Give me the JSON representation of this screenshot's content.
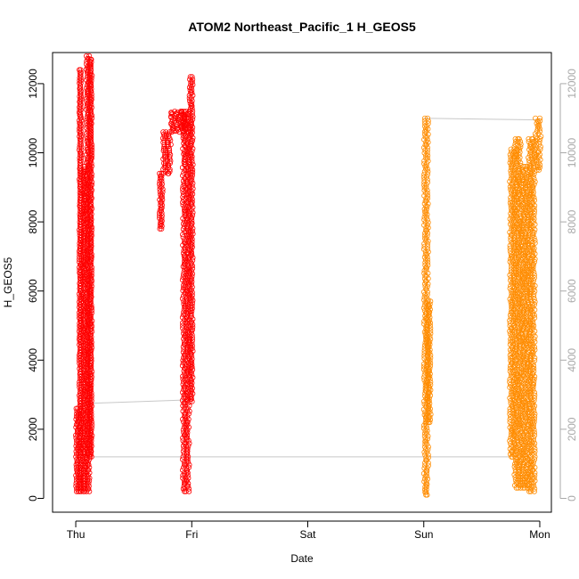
{
  "chart_data": {
    "type": "scatter",
    "title": "ATOM2 Northeast_Pacific_1 H_GEOS5",
    "xlabel": "Date",
    "ylabel": "H_GEOS5",
    "x_ticks": [
      "Thu",
      "Fri",
      "Sat",
      "Sun",
      "Mon"
    ],
    "xlim_days": [
      -0.2,
      4.1
    ],
    "ylim": [
      -400,
      12900
    ],
    "y_ticks_left": [
      "0",
      "2000",
      "4000",
      "6000",
      "8000",
      "10000",
      "12000"
    ],
    "y_ticks_right": [
      "0",
      "2000",
      "4000",
      "6000",
      "8000",
      "10000",
      "12000"
    ],
    "grid": false,
    "legend": "none",
    "colors": {
      "series_1": "#ff0000",
      "series_2": "#ff8c00",
      "connector": "#c8c8c8",
      "right_axis": "#a9a9a9"
    },
    "series": [
      {
        "color": "#ff0000",
        "segments": [
          {
            "x_range": [
              0.0,
              0.03
            ],
            "y_range": [
              200,
              2600
            ]
          },
          {
            "x_range": [
              0.03,
              0.05
            ],
            "y_range": [
              200,
              12400
            ]
          },
          {
            "x_range": [
              0.06,
              0.09
            ],
            "y_range": [
              200,
              9600
            ]
          },
          {
            "x_range": [
              0.09,
              0.12
            ],
            "y_range": [
              200,
              12800
            ]
          },
          {
            "x_range": [
              0.12,
              0.14
            ],
            "y_range": [
              1200,
              12700
            ]
          },
          {
            "x_range": [
              0.72,
              0.75
            ],
            "y_range": [
              7800,
              9400
            ]
          },
          {
            "x_range": [
              0.75,
              0.82
            ],
            "y_range": [
              9400,
              10600
            ]
          },
          {
            "x_range": [
              0.82,
              0.95
            ],
            "y_range": [
              10600,
              11200
            ]
          },
          {
            "x_range": [
              0.92,
              0.98
            ],
            "y_range": [
              200,
              11200
            ]
          },
          {
            "x_range": [
              0.98,
              1.01
            ],
            "y_range": [
              2800,
              12200
            ]
          }
        ]
      },
      {
        "color": "#ff8c00",
        "segments": [
          {
            "x_range": [
              3.0,
              3.04
            ],
            "y_range": [
              100,
              11000
            ]
          },
          {
            "x_range": [
              3.03,
              3.06
            ],
            "y_range": [
              2200,
              5700
            ]
          },
          {
            "x_range": [
              3.74,
              3.78
            ],
            "y_range": [
              1200,
              10100
            ]
          },
          {
            "x_range": [
              3.78,
              3.84
            ],
            "y_range": [
              300,
              10400
            ]
          },
          {
            "x_range": [
              3.84,
              3.9
            ],
            "y_range": [
              300,
              9600
            ]
          },
          {
            "x_range": [
              3.9,
              3.96
            ],
            "y_range": [
              200,
              10400
            ]
          },
          {
            "x_range": [
              3.96,
              4.01
            ],
            "y_range": [
              9500,
              11000
            ]
          }
        ]
      }
    ],
    "connectors": [
      {
        "x": [
          0.12,
          0.98
        ],
        "y": [
          2750,
          2850
        ]
      },
      {
        "x": [
          0.16,
          3.74
        ],
        "y": [
          1200,
          1200
        ]
      },
      {
        "x": [
          3.0,
          4.0
        ],
        "y": [
          11000,
          10950
        ]
      }
    ]
  }
}
